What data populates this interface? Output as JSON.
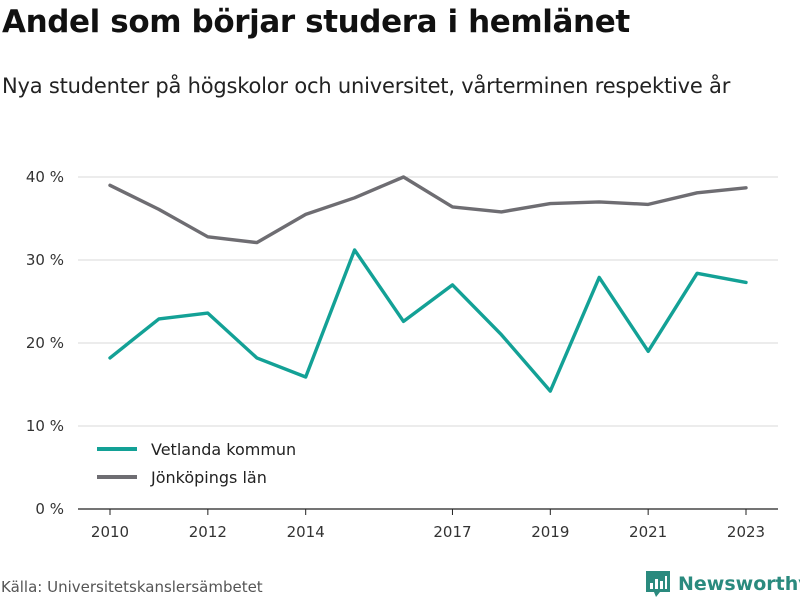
{
  "header": {
    "title": "Andel som börjar studera i hemlänet",
    "subtitle": "Nya studenter på högskolor och universitet, vårterminen respektive år"
  },
  "footer": {
    "source": "Källa: Universitetskanslersämbetet",
    "brand": "Newsworthy",
    "brand_icon": "newsworthy-logo-icon",
    "brand_color": "#2a8a7e"
  },
  "chart_data": {
    "type": "line",
    "title": "Andel som börjar studera i hemlänet",
    "subtitle": "Nya studenter på högskolor och universitet, vårterminen respektive år",
    "x": [
      2010,
      2011,
      2012,
      2013,
      2014,
      2015,
      2016,
      2017,
      2018,
      2019,
      2020,
      2021,
      2022,
      2023
    ],
    "xticks": [
      "2010",
      "2012",
      "2014",
      "2017",
      "2019",
      "2021",
      "2023"
    ],
    "yticks": [
      "0 %",
      "10 %",
      "20 %",
      "30 %",
      "40 %"
    ],
    "ylim": [
      0,
      40
    ],
    "grid": true,
    "legend_position": "bottom-left",
    "series": [
      {
        "name": "Vetlanda kommun",
        "color": "#13a196",
        "values": [
          18.2,
          22.9,
          23.6,
          18.2,
          15.9,
          31.2,
          22.6,
          27.0,
          21.0,
          14.2,
          27.9,
          19.0,
          28.4,
          27.3
        ]
      },
      {
        "name": "Jönköpings län",
        "color": "#6e6d72",
        "values": [
          39.0,
          36.1,
          32.8,
          32.1,
          35.5,
          37.5,
          40.0,
          36.4,
          35.8,
          36.8,
          37.0,
          36.7,
          38.1,
          38.7
        ]
      }
    ]
  }
}
